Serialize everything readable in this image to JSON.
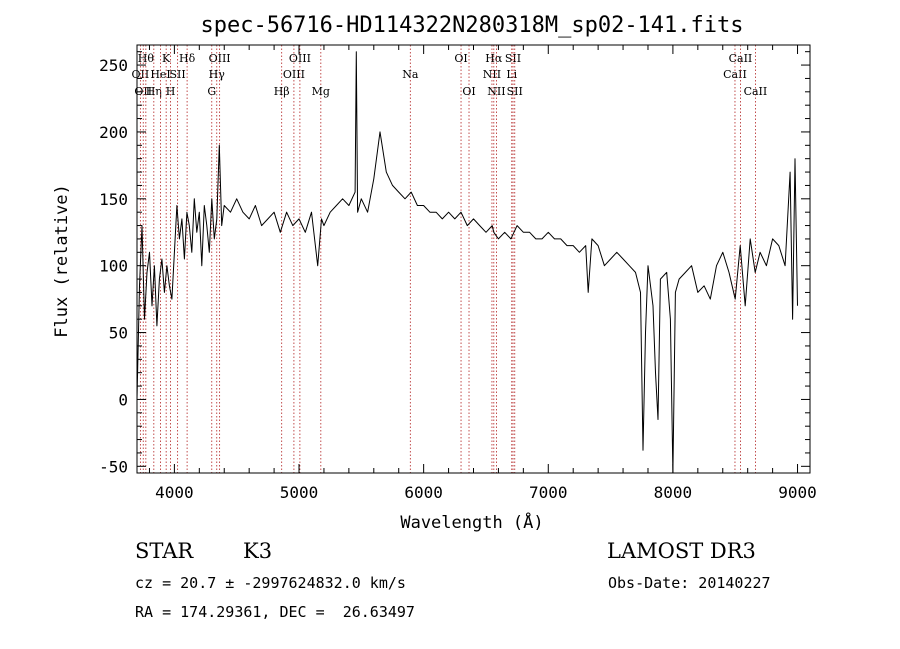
{
  "chart_data": {
    "type": "line",
    "title": "spec-56716-HD114322N280318M_sp02-141.fits",
    "xlabel": "Wavelength (Å)",
    "ylabel": "Flux (relative)",
    "xlim": [
      3700,
      9100
    ],
    "ylim": [
      -55,
      265
    ],
    "xticks": [
      4000,
      5000,
      6000,
      7000,
      8000,
      9000
    ],
    "yticks": [
      -50,
      0,
      50,
      100,
      150,
      200,
      250
    ],
    "grid": false,
    "line_color": "#000000",
    "marker_color": "#b22222",
    "series": [
      {
        "x": [
          3700,
          3720,
          3740,
          3760,
          3780,
          3800,
          3820,
          3840,
          3860,
          3880,
          3900,
          3920,
          3940,
          3960,
          3980,
          4000,
          4020,
          4040,
          4060,
          4080,
          4100,
          4120,
          4140,
          4160,
          4180,
          4200,
          4220,
          4240,
          4260,
          4280,
          4300,
          4320,
          4340,
          4360,
          4380,
          4400,
          4450,
          4500,
          4550,
          4600,
          4650,
          4700,
          4750,
          4800,
          4850,
          4900,
          4950,
          5000,
          5050,
          5100,
          5150,
          5180,
          5200,
          5250,
          5300,
          5350,
          5400,
          5450,
          5460,
          5470,
          5500,
          5550,
          5600,
          5650,
          5700,
          5750,
          5800,
          5850,
          5900,
          5950,
          6000,
          6050,
          6100,
          6150,
          6200,
          6250,
          6300,
          6350,
          6400,
          6450,
          6500,
          6550,
          6563,
          6600,
          6650,
          6700,
          6750,
          6800,
          6850,
          6900,
          6950,
          7000,
          7050,
          7100,
          7150,
          7200,
          7250,
          7300,
          7320,
          7350,
          7400,
          7450,
          7500,
          7550,
          7600,
          7650,
          7700,
          7740,
          7760,
          7780,
          7800,
          7840,
          7860,
          7880,
          7900,
          7950,
          7980,
          8000,
          8020,
          8050,
          8100,
          8150,
          8200,
          8250,
          8300,
          8350,
          8400,
          8450,
          8500,
          8540,
          8580,
          8620,
          8660,
          8700,
          8750,
          8800,
          8850,
          8900,
          8940,
          8960,
          8980,
          9000
        ],
        "y": [
          0,
          85,
          130,
          60,
          95,
          110,
          70,
          100,
          55,
          90,
          105,
          80,
          100,
          85,
          75,
          110,
          145,
          120,
          135,
          105,
          140,
          130,
          110,
          150,
          125,
          140,
          100,
          145,
          130,
          110,
          150,
          120,
          135,
          190,
          130,
          145,
          140,
          150,
          140,
          135,
          145,
          130,
          135,
          140,
          125,
          140,
          130,
          135,
          125,
          140,
          100,
          135,
          130,
          140,
          145,
          150,
          145,
          155,
          260,
          140,
          150,
          140,
          165,
          200,
          170,
          160,
          155,
          150,
          155,
          145,
          145,
          140,
          140,
          135,
          140,
          135,
          140,
          130,
          135,
          130,
          125,
          130,
          125,
          120,
          125,
          120,
          130,
          125,
          125,
          120,
          120,
          125,
          120,
          120,
          115,
          115,
          110,
          115,
          80,
          120,
          115,
          100,
          105,
          110,
          105,
          100,
          95,
          80,
          -38,
          50,
          100,
          70,
          20,
          -15,
          90,
          95,
          60,
          -55,
          80,
          90,
          95,
          100,
          80,
          85,
          75,
          100,
          110,
          95,
          75,
          115,
          70,
          120,
          95,
          110,
          100,
          120,
          115,
          100,
          170,
          60,
          180,
          70
        ]
      }
    ],
    "line_markers": [
      {
        "wavelength": 3727,
        "label": "OII",
        "row": 2
      },
      {
        "wavelength": 3750,
        "label": "OII",
        "row": 3
      },
      {
        "wavelength": 3771,
        "label": "Hθ",
        "row": 1
      },
      {
        "wavelength": 3835,
        "label": "Hη",
        "row": 3
      },
      {
        "wavelength": 3889,
        "label": "HeI",
        "row": 2
      },
      {
        "wavelength": 3934,
        "label": "K",
        "row": 1
      },
      {
        "wavelength": 3969,
        "label": "H",
        "row": 3
      },
      {
        "wavelength": 4026,
        "label": "SII",
        "row": 2
      },
      {
        "wavelength": 4102,
        "label": "Hδ",
        "row": 1
      },
      {
        "wavelength": 4300,
        "label": "G",
        "row": 3
      },
      {
        "wavelength": 4340,
        "label": "Hγ",
        "row": 2
      },
      {
        "wavelength": 4363,
        "label": "OIII",
        "row": 1
      },
      {
        "wavelength": 4861,
        "label": "Hβ",
        "row": 3
      },
      {
        "wavelength": 4959,
        "label": "OIII",
        "row": 2
      },
      {
        "wavelength": 5007,
        "label": "OIII",
        "row": 1
      },
      {
        "wavelength": 5175,
        "label": "Mg",
        "row": 3
      },
      {
        "wavelength": 5893,
        "label": "Na",
        "row": 2
      },
      {
        "wavelength": 6300,
        "label": "OI",
        "row": 1
      },
      {
        "wavelength": 6364,
        "label": "OI",
        "row": 3
      },
      {
        "wavelength": 6548,
        "label": "NII",
        "row": 2
      },
      {
        "wavelength": 6563,
        "label": "Hα",
        "row": 1
      },
      {
        "wavelength": 6584,
        "label": "NII",
        "row": 3
      },
      {
        "wavelength": 6707,
        "label": "Li",
        "row": 2
      },
      {
        "wavelength": 6717,
        "label": "SII",
        "row": 1
      },
      {
        "wavelength": 6731,
        "label": "SII",
        "row": 3
      },
      {
        "wavelength": 8498,
        "label": "CaII",
        "row": 2
      },
      {
        "wavelength": 8542,
        "label": "CaII",
        "row": 1
      },
      {
        "wavelength": 8662,
        "label": "CaII",
        "row": 3
      }
    ]
  },
  "footer": {
    "class_label": "STAR",
    "subclass": "K3",
    "cz": "cz = 20.7 ± -2997624832.0 km/s",
    "coords": "RA = 174.29361, DEC =  26.63497",
    "survey": "LAMOST DR3",
    "obs_date": "Obs-Date: 20140227"
  }
}
